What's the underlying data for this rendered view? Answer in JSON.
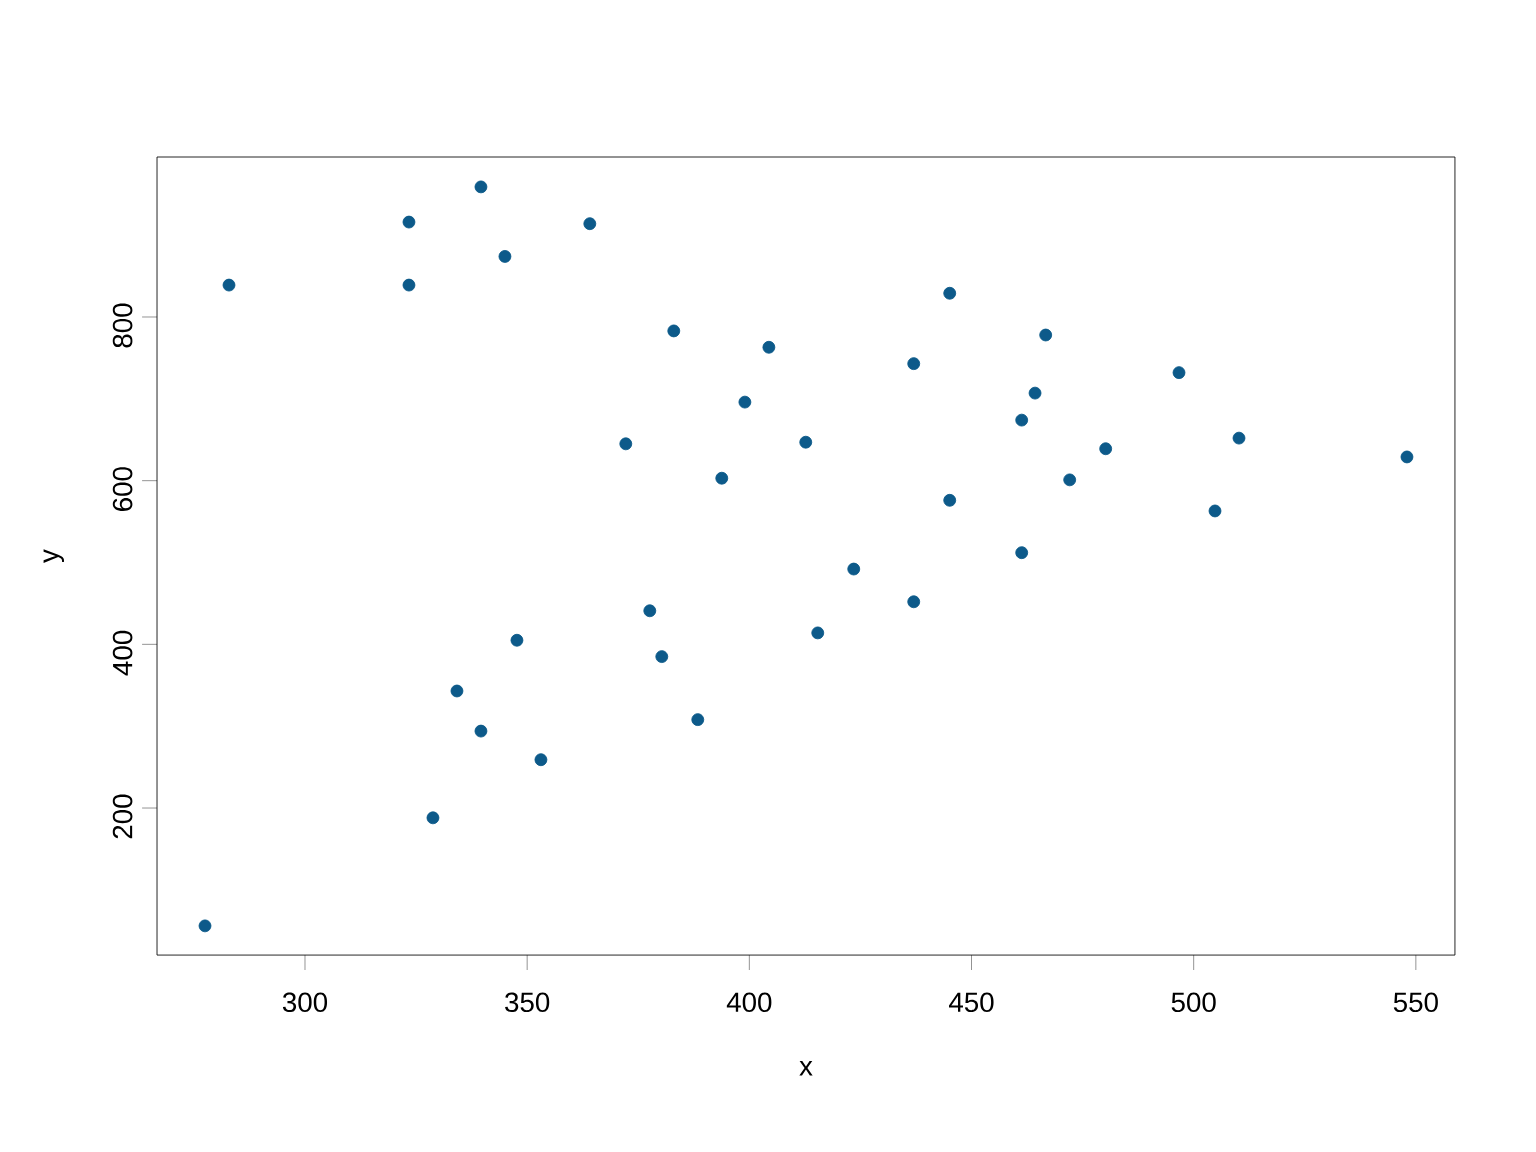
{
  "chart_data": {
    "type": "scatter",
    "xlabel": "x",
    "ylabel": "y",
    "color": "#0d5a8a",
    "marker": "circle",
    "x": [
      277.5,
      282.9,
      323.4,
      323.4,
      339.6,
      345.0,
      364.1,
      383.0,
      404.4,
      445.1,
      437.0,
      466.7,
      464.3,
      461.3,
      496.7,
      510.2,
      548.0,
      480.2,
      472.1,
      504.8,
      445.1,
      461.3,
      399.0,
      412.7,
      372.2,
      393.8,
      423.5,
      437.0,
      415.4,
      377.6,
      380.3,
      347.7,
      334.2,
      339.6,
      353.1,
      388.4,
      328.8
    ],
    "values": [
      56,
      839,
      916,
      839,
      959,
      874,
      914,
      783,
      763,
      829,
      743,
      778,
      707,
      674,
      732,
      652,
      629,
      639,
      601,
      563,
      576,
      512,
      696,
      647,
      645,
      603,
      492,
      452,
      414,
      441,
      385,
      405,
      343,
      294,
      259,
      308,
      188
    ],
    "xlim": [
      266.7,
      558.8
    ],
    "ylim": [
      20.3,
      995.5
    ],
    "xticks": [
      300,
      350,
      400,
      450,
      500,
      550
    ],
    "yticks": [
      200,
      400,
      600,
      800
    ]
  }
}
